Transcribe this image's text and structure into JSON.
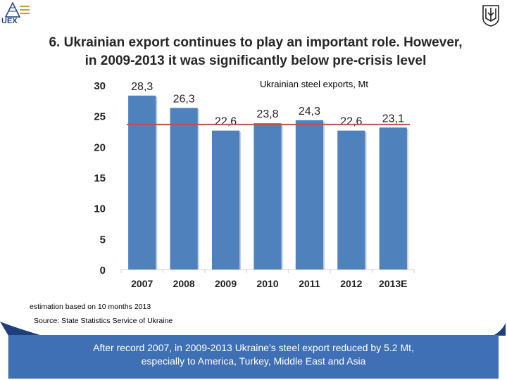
{
  "header": {
    "logo_text": "UEX",
    "title_line1": "6. Ukrainian export continues to play an important role. However,",
    "title_line2": "in 2009-2013  it was significantly below pre-crisis level"
  },
  "chart_data": {
    "type": "bar",
    "title": "Ukrainian steel exports, Mt",
    "categories": [
      "2007",
      "2008",
      "2009",
      "2010",
      "2011",
      "2012",
      "2013E"
    ],
    "values": [
      28.3,
      26.3,
      22.6,
      23.8,
      24.3,
      22.6,
      23.1
    ],
    "data_labels": [
      "28,3",
      "26,3",
      "22,6",
      "23,8",
      "24,3",
      "22,6",
      "23,1"
    ],
    "yticks": [
      "0",
      "5",
      "10",
      "15",
      "20",
      "25",
      "30"
    ],
    "ylim": [
      0,
      30
    ],
    "reference_line": 23.6,
    "bar_color": "#4f81bd",
    "line_color": "#c0504d",
    "grid": false
  },
  "notes": {
    "estimation": "estimation based on 10 months 2013",
    "source": "Source: State Statistics  Service of Ukraine"
  },
  "summary": {
    "line1": "After record 2007, in 2009-2013 Ukraine’s steel export reduced by 5.2 Mt,",
    "line2": "especially to America, Turkey, Middle East and Asia"
  }
}
